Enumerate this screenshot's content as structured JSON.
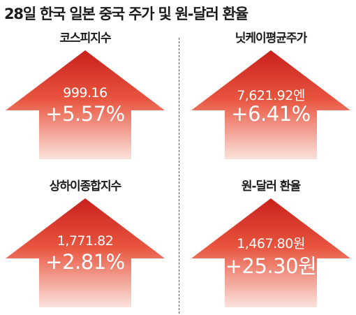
{
  "title": "28일 한국 일본 중국 주가 및 원-달러 환율",
  "colors": {
    "arrow_top": "#c8201c",
    "arrow_mid": "#e8553f",
    "arrow_bottom": "#fbe3dd"
  },
  "panels": [
    {
      "label": "코스피지수",
      "value": "999.16",
      "change": "+5.57%"
    },
    {
      "label": "닛케이평균주가",
      "value": "7,621.92엔",
      "change": "+6.41%"
    },
    {
      "label": "상하이종합지수",
      "value": "1,771.82",
      "change": "+2.81%"
    },
    {
      "label": "원-달러 환율",
      "value": "1,467.80원",
      "change": "+25.30원"
    }
  ],
  "icons": {
    "arrow": "up-arrow-icon"
  }
}
